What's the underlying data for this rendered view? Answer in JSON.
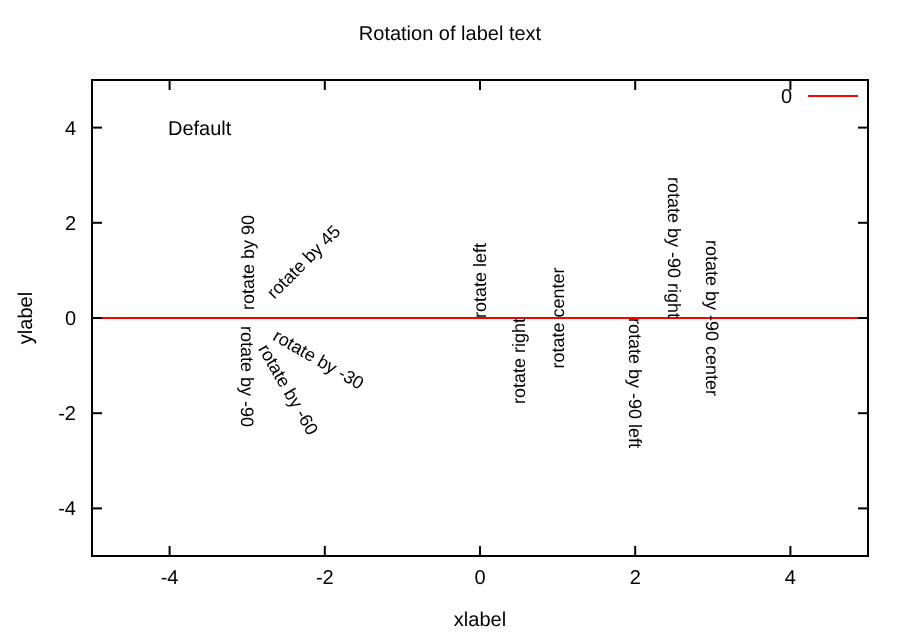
{
  "chart_data": {
    "type": "line",
    "title": "Rotation of label text",
    "xlabel": "xlabel",
    "ylabel": "ylabel",
    "x": [
      -5,
      5
    ],
    "series": [
      {
        "name": "0",
        "color": "#ff0000",
        "values": [
          0,
          0
        ]
      }
    ],
    "xlim": [
      -5,
      5
    ],
    "xticks": [
      -4,
      -2,
      0,
      2,
      4
    ],
    "ylim": [
      -5,
      5
    ],
    "yticks": [
      -4,
      -2,
      0,
      2,
      4
    ],
    "grid": false,
    "legend": "top right",
    "marker": "none",
    "line_style": "solid",
    "annotations": [
      "Default",
      {
        "text": "rotate by 45",
        "x": -3,
        "y": 0
      },
      {
        "text": "rotate by 90",
        "x": -3,
        "y": 0
      },
      {
        "text": "rotate by -90",
        "x": -3,
        "y": 0
      },
      {
        "text": "rotate by -30",
        "x": -3,
        "y": 0
      },
      {
        "text": "rotate by -60",
        "x": -3,
        "y": 0
      },
      {
        "text": "rotate left",
        "x": 0,
        "y": 0
      },
      {
        "text": "rotate right",
        "x": 0.5,
        "y": 0
      },
      {
        "text": "rotate center",
        "x": 1,
        "y": 0
      },
      {
        "text": "rotate by -90 left",
        "x": 2,
        "y": 0
      },
      {
        "text": "rotate by -90 right",
        "x": 2.5,
        "y": 0
      },
      {
        "text": "rotate by -90 center",
        "x": 3,
        "y": 0
      }
    ]
  }
}
